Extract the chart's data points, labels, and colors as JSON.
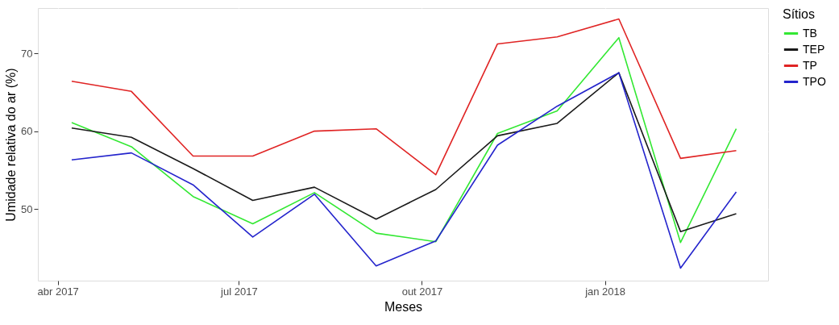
{
  "chart_data": {
    "type": "line",
    "xlabel": "Meses",
    "ylabel": "Umidade relativa do ar (%)",
    "legend_title": "Sítios",
    "x": [
      "2017-04-08",
      "2017-05-08",
      "2017-06-08",
      "2017-07-08",
      "2017-08-08",
      "2017-09-08",
      "2017-10-08",
      "2017-11-08",
      "2017-12-08",
      "2018-01-08",
      "2018-02-08",
      "2018-03-08"
    ],
    "xlim": [
      "2017-03-22",
      "2018-03-24"
    ],
    "xticks": [
      {
        "value": "2017-04-01",
        "label": "abr 2017"
      },
      {
        "value": "2017-07-01",
        "label": "jul 2017"
      },
      {
        "value": "2017-10-01",
        "label": "out 2017"
      },
      {
        "value": "2018-01-01",
        "label": "jan 2018"
      }
    ],
    "ylim": [
      40.8,
      75.8
    ],
    "yticks": [
      50,
      60,
      70
    ],
    "grid": true,
    "legend": "right",
    "line_style": "solid",
    "series": [
      {
        "name": "TB",
        "color": "#33e833",
        "values": [
          61.1,
          58.0,
          51.6,
          48.1,
          52.1,
          46.9,
          45.8,
          59.7,
          62.6,
          72.0,
          45.7,
          60.3
        ]
      },
      {
        "name": "TEP",
        "color": "#1a1a1a",
        "values": [
          60.4,
          59.2,
          55.2,
          51.1,
          52.8,
          48.7,
          52.5,
          59.4,
          61.0,
          67.5,
          47.1,
          49.4
        ]
      },
      {
        "name": "TP",
        "color": "#e02424",
        "values": [
          66.4,
          65.1,
          56.8,
          56.8,
          60.0,
          60.3,
          54.4,
          71.2,
          72.1,
          74.4,
          56.5,
          57.5
        ]
      },
      {
        "name": "TPO",
        "color": "#2424cc",
        "values": [
          56.3,
          57.2,
          53.1,
          46.4,
          51.9,
          42.7,
          45.9,
          58.2,
          63.2,
          67.5,
          42.4,
          52.2
        ]
      }
    ]
  }
}
